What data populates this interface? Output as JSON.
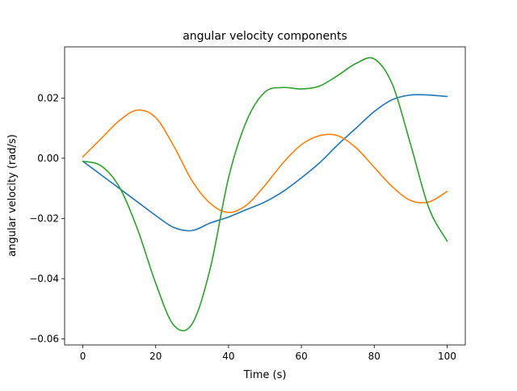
{
  "chart_data": {
    "type": "line",
    "title": "angular velocity components",
    "xlabel": "Time (s)",
    "ylabel": "angular velocity (rad/s)",
    "xlim": [
      -5,
      105
    ],
    "ylim": [
      -0.062,
      0.037
    ],
    "xticks": [
      0,
      20,
      40,
      60,
      80,
      100
    ],
    "yticks": [
      -0.06,
      -0.04,
      -0.02,
      0.0,
      0.02
    ],
    "xtick_labels": [
      "0",
      "20",
      "40",
      "60",
      "80",
      "100"
    ],
    "ytick_labels": [
      "−0.06",
      "−0.04",
      "−0.02",
      "0.00",
      "0.02"
    ],
    "grid": false,
    "legend": "none",
    "x": [
      0,
      5,
      10,
      15,
      20,
      25,
      30,
      35,
      40,
      45,
      50,
      55,
      60,
      65,
      70,
      75,
      80,
      85,
      90,
      95,
      100
    ],
    "series": [
      {
        "color": "#1f77b4",
        "values": [
          -0.001,
          -0.0055,
          -0.01,
          -0.0145,
          -0.019,
          -0.023,
          -0.024,
          -0.0215,
          -0.0195,
          -0.017,
          -0.0145,
          -0.011,
          -0.0065,
          -0.0015,
          0.0045,
          0.01,
          0.0155,
          0.0195,
          0.021,
          0.021,
          0.0205
        ]
      },
      {
        "color": "#ff7f0e",
        "values": [
          0.0005,
          0.0065,
          0.0125,
          0.016,
          0.0135,
          0.004,
          -0.0075,
          -0.015,
          -0.018,
          -0.0155,
          -0.009,
          -0.0015,
          0.0045,
          0.0075,
          0.0075,
          0.0035,
          -0.003,
          -0.0095,
          -0.014,
          -0.0145,
          -0.011
        ]
      },
      {
        "color": "#2ca02c",
        "values": [
          -0.001,
          -0.0025,
          -0.0095,
          -0.0235,
          -0.0415,
          -0.0555,
          -0.055,
          -0.0365,
          -0.0065,
          0.0125,
          0.022,
          0.0235,
          0.023,
          0.024,
          0.0275,
          0.0315,
          0.033,
          0.0245,
          0.0045,
          -0.0165,
          -0.0275
        ]
      }
    ]
  }
}
